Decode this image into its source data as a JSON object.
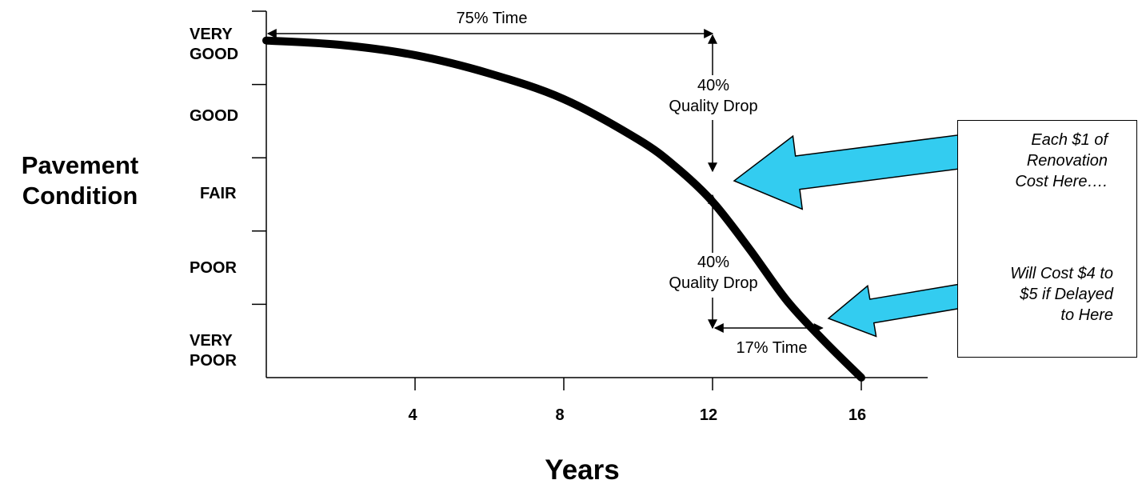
{
  "chart_data": {
    "type": "line",
    "xlabel": "Years",
    "ylabel": "Pavement Condition",
    "x_ticks": [
      4,
      8,
      12,
      16
    ],
    "xlim": [
      0,
      18
    ],
    "ylim": [
      0,
      5
    ],
    "y_categories": [
      "VERY POOR",
      "POOR",
      "FAIR",
      "GOOD",
      "VERY GOOD"
    ],
    "y_category_lines": [
      "VERY",
      "POOR",
      "POOR",
      "FAIR",
      "GOOD",
      "VERY",
      "GOOD"
    ],
    "series": [
      {
        "x": [
          0,
          2,
          4,
          6,
          8,
          10,
          11,
          12,
          13,
          14,
          15,
          16
        ],
        "y": [
          4.6,
          4.54,
          4.4,
          4.15,
          3.8,
          3.25,
          2.88,
          2.4,
          1.75,
          1.05,
          0.5,
          0.0
        ]
      }
    ],
    "color": "#000000",
    "annotations": {
      "time_75": "75% Time",
      "quality_drop_1": [
        "40%",
        "Quality Drop"
      ],
      "quality_drop_2": [
        "40%",
        "Quality Drop"
      ],
      "time_17": "17% Time"
    },
    "callouts": {
      "first": [
        "Each $1 of",
        "Renovation",
        "Cost Here…."
      ],
      "second": [
        "Will Cost $4 to",
        "$5 if Delayed",
        "to Here"
      ],
      "arrow_color": "#33ccf0"
    }
  }
}
